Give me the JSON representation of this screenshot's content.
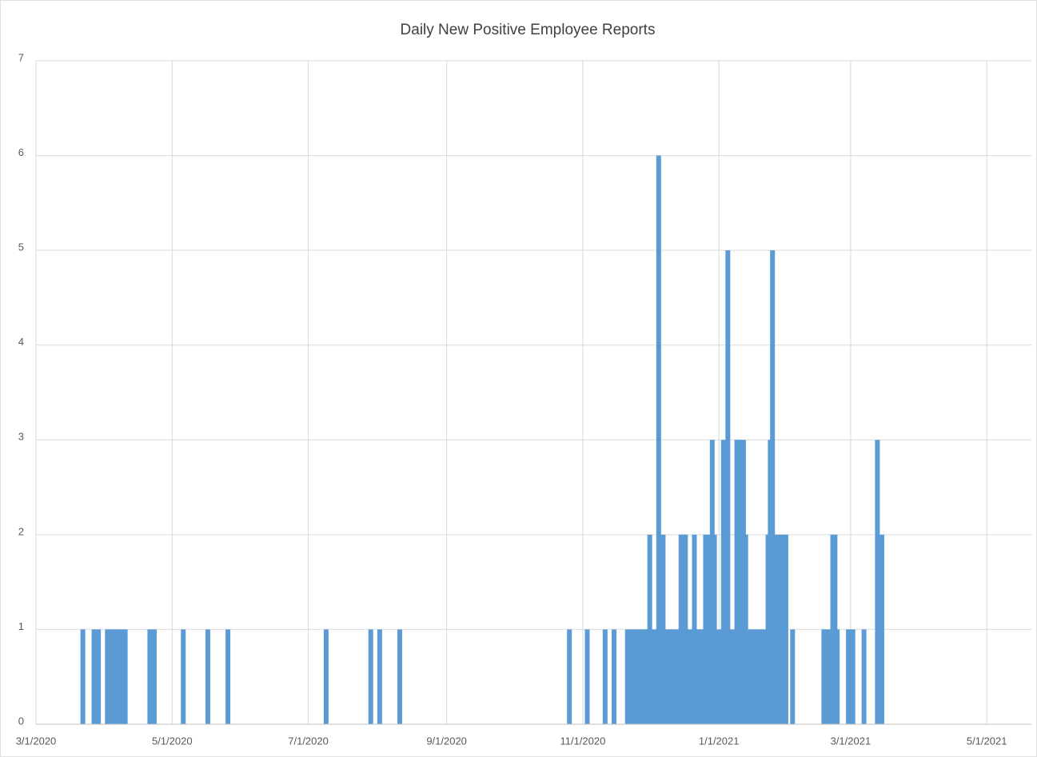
{
  "chart_data": {
    "type": "bar",
    "title": "Daily New Positive Employee Reports",
    "color": "#5b9bd5",
    "grid": true,
    "xlim": [
      "3/1/2020",
      "5/21/2021"
    ],
    "xticks": [
      "3/1/2020",
      "5/1/2020",
      "7/1/2020",
      "9/1/2020",
      "11/1/2020",
      "1/1/2021",
      "3/1/2021",
      "5/1/2021"
    ],
    "ylim": [
      0,
      7
    ],
    "yticks": [
      0,
      1,
      2,
      3,
      4,
      5,
      6,
      7
    ],
    "x": [
      "3/22/2020",
      "3/27/2020",
      "3/29/2020",
      "4/2/2020",
      "4/3/2020",
      "4/4/2020",
      "4/5/2020",
      "4/6/2020",
      "4/7/2020",
      "4/8/2020",
      "4/9/2020",
      "4/10/2020",
      "4/21/2020",
      "4/23/2020",
      "5/6/2020",
      "5/17/2020",
      "5/26/2020",
      "7/9/2020",
      "7/29/2020",
      "8/2/2020",
      "8/11/2020",
      "10/26/2020",
      "11/3/2020",
      "11/11/2020",
      "11/15/2020",
      "11/21/2020",
      "11/22/2020",
      "11/23/2020",
      "11/24/2020",
      "11/25/2020",
      "11/26/2020",
      "11/27/2020",
      "11/28/2020",
      "11/29/2020",
      "11/30/2020",
      "12/1/2020",
      "12/2/2020",
      "12/3/2020",
      "12/5/2020",
      "12/7/2020",
      "12/9/2020",
      "12/10/2020",
      "12/11/2020",
      "12/12/2020",
      "12/13/2020",
      "12/15/2020",
      "12/16/2020",
      "12/17/2020",
      "12/18/2020",
      "12/19/2020",
      "12/20/2020",
      "12/21/2020",
      "12/22/2020",
      "12/23/2020",
      "12/24/2020",
      "12/26/2020",
      "12/27/2020",
      "12/29/2020",
      "12/30/2020",
      "1/1/2021",
      "1/2/2021",
      "1/3/2021",
      "1/5/2021",
      "1/6/2021",
      "1/7/2021",
      "1/9/2021",
      "1/10/2021",
      "1/11/2021",
      "1/12/2021",
      "1/13/2021",
      "1/14/2021",
      "1/15/2021",
      "1/16/2021",
      "1/17/2021",
      "1/18/2021",
      "1/19/2021",
      "1/20/2021",
      "1/21/2021",
      "1/23/2021",
      "1/24/2021",
      "1/25/2021",
      "1/26/2021",
      "1/28/2021",
      "1/29/2021",
      "1/30/2021",
      "1/31/2021",
      "2/3/2021",
      "2/17/2021",
      "2/19/2021",
      "2/21/2021",
      "2/22/2021",
      "2/23/2021",
      "2/28/2021",
      "3/1/2021",
      "3/2/2021",
      "3/7/2021",
      "3/13/2021",
      "3/15/2021"
    ],
    "values": [
      1,
      1,
      1,
      1,
      1,
      1,
      1,
      1,
      1,
      1,
      1,
      1,
      1,
      1,
      1,
      1,
      1,
      1,
      1,
      1,
      1,
      1,
      1,
      1,
      1,
      1,
      1,
      1,
      1,
      1,
      1,
      1,
      1,
      1,
      1,
      2,
      1,
      1,
      6,
      2,
      1,
      1,
      1,
      1,
      1,
      2,
      2,
      2,
      1,
      1,
      1,
      2,
      1,
      1,
      1,
      2,
      2,
      3,
      2,
      1,
      1,
      3,
      5,
      1,
      1,
      3,
      3,
      3,
      3,
      2,
      1,
      1,
      1,
      1,
      1,
      1,
      1,
      1,
      2,
      3,
      5,
      2,
      2,
      2,
      2,
      2,
      1,
      1,
      1,
      2,
      2,
      1,
      1,
      1,
      1,
      1,
      3,
      2
    ]
  }
}
